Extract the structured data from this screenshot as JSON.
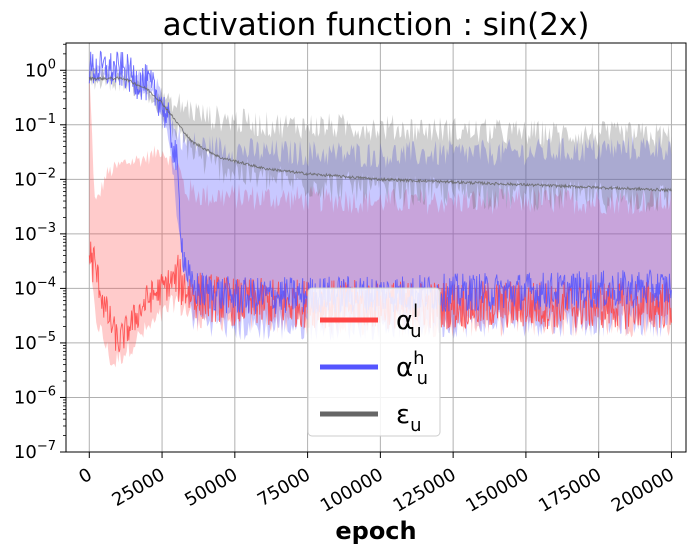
{
  "chart_data": {
    "type": "line",
    "title": "activation function : sin(2x)",
    "xlabel": "epoch",
    "ylabel": "",
    "xlim": [
      -8000,
      205000
    ],
    "x_ticks": [
      0,
      25000,
      50000,
      75000,
      100000,
      125000,
      150000,
      175000,
      200000
    ],
    "x_tick_labels": [
      "0",
      "25000",
      "50000",
      "75000",
      "100000",
      "125000",
      "150000",
      "175000",
      "200000"
    ],
    "yscale": "log",
    "ylim_log10": [
      -7,
      0.5
    ],
    "y_ticks_log10": [
      0,
      -1,
      -2,
      -3,
      -4,
      -5,
      -6,
      -7
    ],
    "y_tick_labels": [
      {
        "base": "10",
        "exp": "0"
      },
      {
        "base": "10",
        "exp": "−1"
      },
      {
        "base": "10",
        "exp": "−2"
      },
      {
        "base": "10",
        "exp": "−3"
      },
      {
        "base": "10",
        "exp": "−4"
      },
      {
        "base": "10",
        "exp": "−5"
      },
      {
        "base": "10",
        "exp": "−6"
      },
      {
        "base": "10",
        "exp": "−7"
      }
    ],
    "grid": true,
    "legend_position": "bottom-center",
    "series": [
      {
        "name": "alpha_u^l",
        "legend": {
          "base": "α",
          "sup": "l",
          "sub": "u"
        },
        "color": "#ff4444",
        "line_log10": [
          [
            0,
            -3.4
          ],
          [
            2000,
            -3.6
          ],
          [
            5000,
            -4.3
          ],
          [
            10000,
            -5.0
          ],
          [
            15000,
            -4.6
          ],
          [
            20000,
            -4.2
          ],
          [
            25000,
            -4.0
          ],
          [
            30000,
            -3.8
          ],
          [
            35000,
            -4.1
          ],
          [
            50000,
            -4.25
          ],
          [
            100000,
            -4.3
          ],
          [
            150000,
            -4.3
          ],
          [
            200000,
            -4.3
          ]
        ],
        "band_upper_log10": [
          [
            0,
            -0.05
          ],
          [
            2000,
            -2.5
          ],
          [
            6000,
            -1.9
          ],
          [
            12000,
            -1.7
          ],
          [
            20000,
            -1.6
          ],
          [
            25000,
            -1.45
          ],
          [
            30000,
            -1.8
          ],
          [
            33000,
            -2.3
          ],
          [
            40000,
            -2.4
          ],
          [
            100000,
            -2.5
          ],
          [
            150000,
            -2.5
          ],
          [
            200000,
            -2.5
          ]
        ],
        "band_lower_log10": [
          [
            0,
            -3.5
          ],
          [
            2000,
            -4.5
          ],
          [
            8000,
            -5.4
          ],
          [
            15000,
            -5.0
          ],
          [
            25000,
            -4.5
          ],
          [
            30000,
            -4.2
          ],
          [
            35000,
            -4.5
          ],
          [
            100000,
            -4.6
          ],
          [
            200000,
            -4.6
          ]
        ]
      },
      {
        "name": "alpha_u^h",
        "legend": {
          "base": "α",
          "sup": "h",
          "sub": "u"
        },
        "color": "#5555ff",
        "line_log10": [
          [
            0,
            0.02
          ],
          [
            12000,
            0.0
          ],
          [
            15000,
            -0.15
          ],
          [
            20000,
            -0.25
          ],
          [
            24000,
            -0.5
          ],
          [
            27000,
            -0.9
          ],
          [
            30000,
            -1.7
          ],
          [
            32000,
            -3.3
          ],
          [
            35000,
            -4.0
          ],
          [
            50000,
            -4.15
          ],
          [
            100000,
            -4.1
          ],
          [
            150000,
            -4.05
          ],
          [
            200000,
            -4.0
          ]
        ],
        "band_upper_log10": [
          [
            0,
            0.05
          ],
          [
            12000,
            0.03
          ],
          [
            15000,
            -0.1
          ],
          [
            20000,
            -0.15
          ],
          [
            24000,
            -0.3
          ],
          [
            27000,
            -0.7
          ],
          [
            30000,
            -1.2
          ],
          [
            33000,
            -1.4
          ],
          [
            40000,
            -1.5
          ],
          [
            60000,
            -1.6
          ],
          [
            100000,
            -1.65
          ],
          [
            150000,
            -1.6
          ],
          [
            200000,
            -1.5
          ]
        ],
        "band_lower_log10": [
          [
            0,
            -0.05
          ],
          [
            12000,
            -0.05
          ],
          [
            15000,
            -0.25
          ],
          [
            20000,
            -0.4
          ],
          [
            24000,
            -0.7
          ],
          [
            27000,
            -1.2
          ],
          [
            30000,
            -2.5
          ],
          [
            32000,
            -3.5
          ],
          [
            35000,
            -4.5
          ],
          [
            50000,
            -4.7
          ],
          [
            100000,
            -4.65
          ],
          [
            150000,
            -4.6
          ],
          [
            200000,
            -4.6
          ]
        ]
      },
      {
        "name": "epsilon_u",
        "legend": {
          "base": "ε",
          "sup": "",
          "sub": "u"
        },
        "color": "#666666",
        "line_log10": [
          [
            0,
            -0.15
          ],
          [
            12000,
            -0.15
          ],
          [
            16000,
            -0.25
          ],
          [
            20000,
            -0.35
          ],
          [
            25000,
            -0.6
          ],
          [
            30000,
            -0.95
          ],
          [
            35000,
            -1.3
          ],
          [
            45000,
            -1.6
          ],
          [
            60000,
            -1.8
          ],
          [
            75000,
            -1.9
          ],
          [
            100000,
            -2.0
          ],
          [
            125000,
            -2.05
          ],
          [
            150000,
            -2.1
          ],
          [
            175000,
            -2.15
          ],
          [
            200000,
            -2.2
          ]
        ],
        "band_upper_log10": [
          [
            0,
            -0.1
          ],
          [
            12000,
            -0.1
          ],
          [
            16000,
            -0.2
          ],
          [
            20000,
            -0.3
          ],
          [
            25000,
            -0.45
          ],
          [
            30000,
            -0.7
          ],
          [
            40000,
            -0.95
          ],
          [
            60000,
            -1.1
          ],
          [
            100000,
            -1.15
          ],
          [
            150000,
            -1.25
          ],
          [
            200000,
            -1.3
          ]
        ],
        "band_lower_log10": [
          [
            0,
            -0.2
          ],
          [
            12000,
            -0.2
          ],
          [
            16000,
            -0.3
          ],
          [
            20000,
            -0.45
          ],
          [
            25000,
            -0.8
          ],
          [
            30000,
            -1.2
          ],
          [
            40000,
            -1.7
          ],
          [
            60000,
            -2.0
          ],
          [
            100000,
            -2.2
          ],
          [
            150000,
            -2.3
          ],
          [
            200000,
            -2.35
          ]
        ]
      }
    ]
  }
}
